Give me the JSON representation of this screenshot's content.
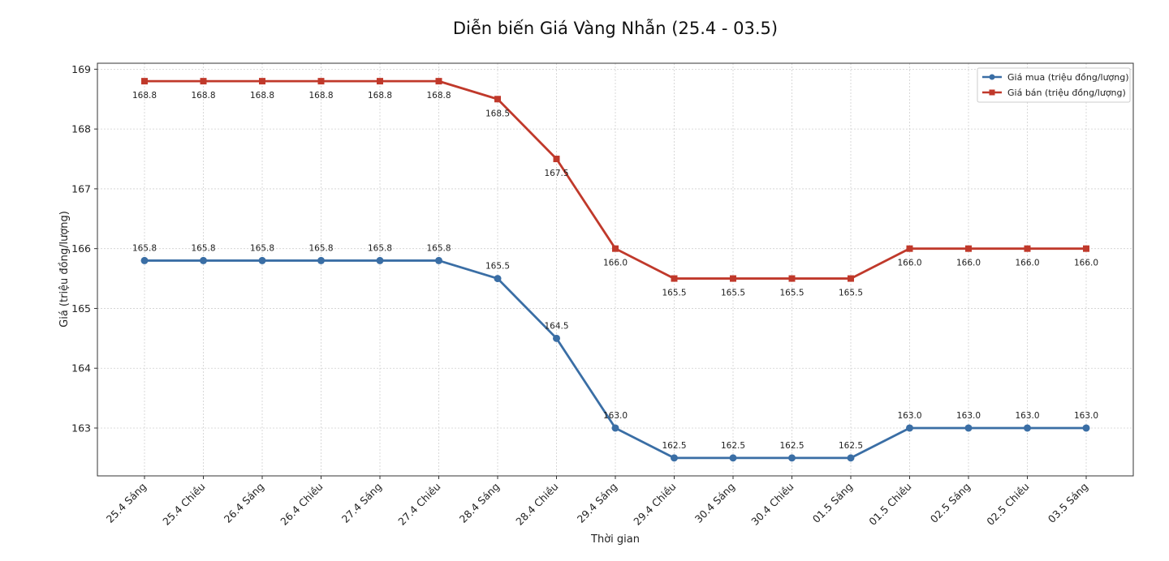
{
  "chart_data": {
    "type": "line",
    "title": "Diễn biến Giá Vàng Nhẫn (25.4 - 03.5)",
    "xlabel": "Thời gian",
    "ylabel": "Giá (triệu đồng/lượng)",
    "ylim": [
      162.2,
      169.1
    ],
    "yticks": [
      163,
      164,
      165,
      166,
      167,
      168,
      169
    ],
    "grid": true,
    "legend_position": "top-right",
    "categories": [
      "25.4 Sáng",
      "25.4 Chiều",
      "26.4 Sáng",
      "26.4 Chiều",
      "27.4 Sáng",
      "27.4 Chiều",
      "28.4 Sáng",
      "28.4 Chiều",
      "29.4 Sáng",
      "29.4 Chiều",
      "30.4 Sáng",
      "30.4 Chiều",
      "01.5 Sáng",
      "01.5 Chiều",
      "02.5 Sáng",
      "02.5 Chiều",
      "03.5 Sáng"
    ],
    "series": [
      {
        "name": "Giá mua (triệu đồng/lượng)",
        "color": "#3a6ea5",
        "marker": "circle",
        "label_position": "above",
        "values": [
          165.8,
          165.8,
          165.8,
          165.8,
          165.8,
          165.8,
          165.5,
          164.5,
          163.0,
          162.5,
          162.5,
          162.5,
          162.5,
          163.0,
          163.0,
          163.0,
          163.0
        ]
      },
      {
        "name": "Giá bán (triệu đồng/lượng)",
        "color": "#c0392b",
        "marker": "square",
        "label_position": "below",
        "values": [
          168.8,
          168.8,
          168.8,
          168.8,
          168.8,
          168.8,
          168.5,
          167.5,
          166.0,
          165.5,
          165.5,
          165.5,
          165.5,
          166.0,
          166.0,
          166.0,
          166.0
        ]
      }
    ]
  }
}
